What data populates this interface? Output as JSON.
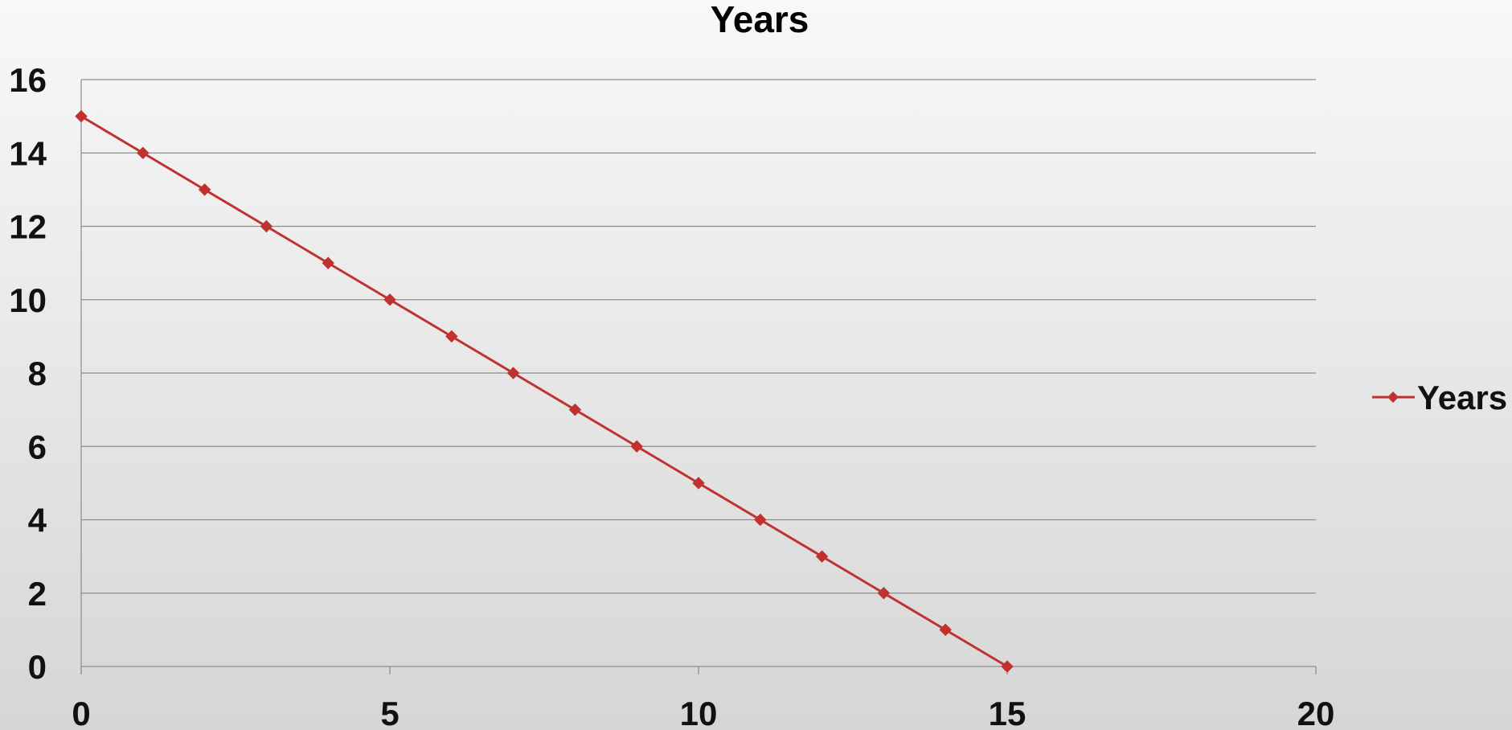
{
  "chart_data": {
    "type": "line",
    "title": "Years",
    "xlabel": "",
    "ylabel": "",
    "xlim": [
      0,
      20
    ],
    "ylim": [
      0,
      16
    ],
    "x_ticks": [
      "0",
      "5",
      "10",
      "15",
      "20"
    ],
    "y_ticks": [
      "0",
      "2",
      "4",
      "6",
      "8",
      "10",
      "12",
      "14",
      "16"
    ],
    "grid": "horizontal",
    "legend_position": "right",
    "series": [
      {
        "name": "Years",
        "color": "#c0312f",
        "marker": "diamond",
        "x": [
          0,
          1,
          2,
          3,
          4,
          5,
          6,
          7,
          8,
          9,
          10,
          11,
          12,
          13,
          14,
          15
        ],
        "y": [
          15,
          14,
          13,
          12,
          11,
          10,
          9,
          8,
          7,
          6,
          5,
          4,
          3,
          2,
          1,
          0
        ]
      }
    ]
  }
}
